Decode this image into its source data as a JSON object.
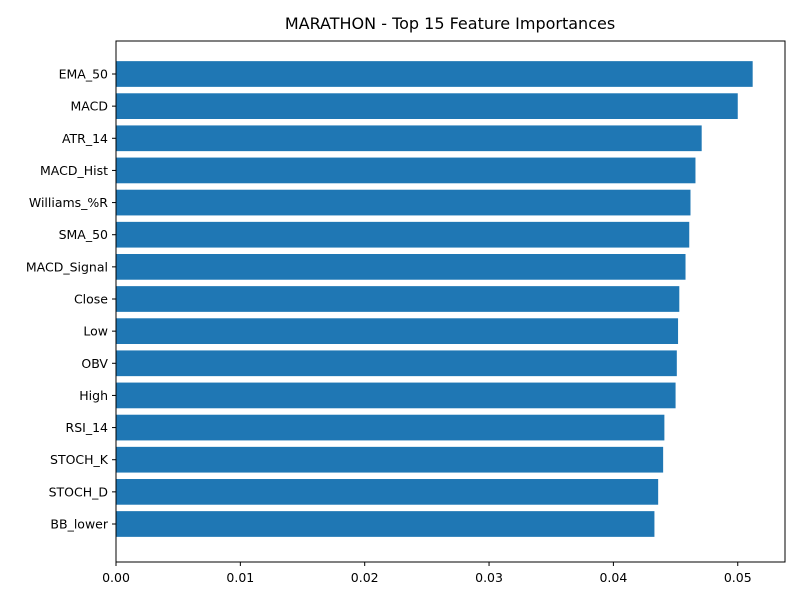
{
  "chart_data": {
    "type": "bar",
    "orientation": "horizontal",
    "title": "MARATHON - Top 15 Feature Importances",
    "xlabel": "",
    "ylabel": "",
    "categories": [
      "EMA_50",
      "MACD",
      "ATR_14",
      "MACD_Hist",
      "Williams_%R",
      "SMA_50",
      "MACD_Signal",
      "Close",
      "Low",
      "OBV",
      "High",
      "RSI_14",
      "STOCH_K",
      "STOCH_D",
      "BB_lower"
    ],
    "values": [
      0.0512,
      0.05,
      0.0471,
      0.0466,
      0.0462,
      0.0461,
      0.0458,
      0.0453,
      0.0452,
      0.0451,
      0.045,
      0.0441,
      0.044,
      0.0436,
      0.0433
    ],
    "xlim": [
      0,
      0.0538
    ],
    "xticks": [
      0.0,
      0.01,
      0.02,
      0.03,
      0.04,
      0.05
    ],
    "xtick_labels": [
      "0.00",
      "0.01",
      "0.02",
      "0.03",
      "0.04",
      "0.05"
    ],
    "bar_color": "#1f77b4",
    "grid": false,
    "legend": "none"
  }
}
